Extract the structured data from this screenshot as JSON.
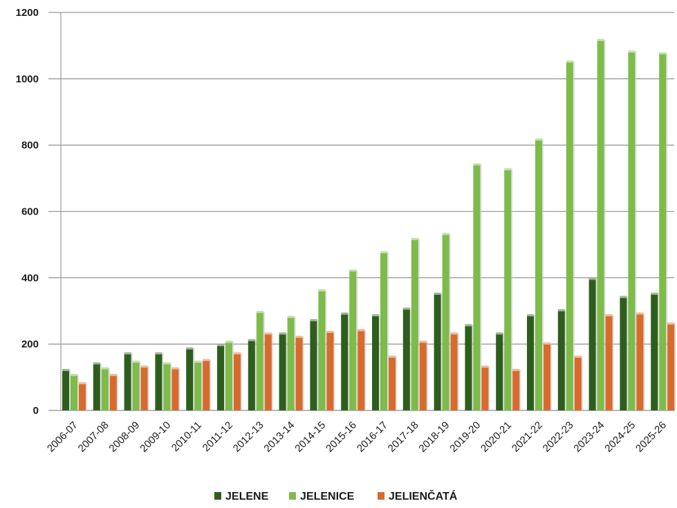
{
  "chart_data": {
    "type": "bar",
    "categories": [
      "2006-07",
      "2007-08",
      "2008-09",
      "2009-10",
      "2010-11",
      "2011-12",
      "2012-13",
      "2013-14",
      "2014-15",
      "2015-16",
      "2016-17",
      "2017-18",
      "2018-19",
      "2019-20",
      "2020-21",
      "2021-22",
      "2022-23",
      "2023-24",
      "2024-25",
      "2025-26"
    ],
    "series": [
      {
        "name": "JELENE",
        "color": "#2e5e1e",
        "values": [
          125,
          145,
          175,
          175,
          190,
          200,
          215,
          235,
          275,
          295,
          290,
          310,
          355,
          260,
          235,
          290,
          305,
          400,
          345,
          355
        ]
      },
      {
        "name": "JELENICE",
        "color": "#7dbb4a",
        "values": [
          110,
          130,
          150,
          145,
          150,
          210,
          300,
          285,
          365,
          425,
          480,
          520,
          535,
          745,
          730,
          820,
          1055,
          1120,
          1085,
          1080
        ]
      },
      {
        "name": "JELIENČATÁ",
        "color": "#d76b2d",
        "values": [
          85,
          110,
          135,
          130,
          155,
          175,
          235,
          225,
          240,
          245,
          165,
          210,
          235,
          135,
          125,
          205,
          165,
          290,
          295,
          265
        ]
      }
    ],
    "ylim": [
      0,
      1200
    ],
    "yticks": [
      0,
      200,
      400,
      600,
      800,
      1000,
      1200
    ],
    "grid": true,
    "legend_position": "bottom"
  }
}
